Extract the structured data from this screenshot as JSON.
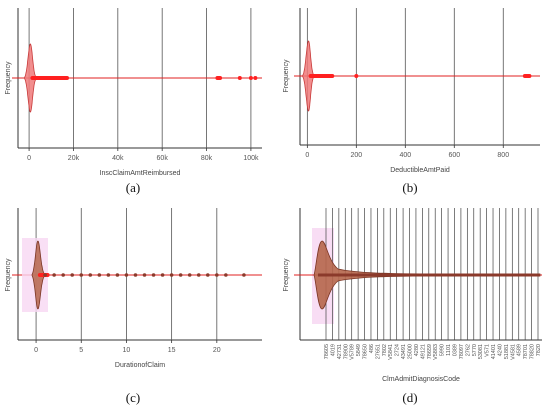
{
  "chart_data": [
    {
      "type": "violin",
      "caption": "(a)",
      "xlabel": "InscClaimAmtReimbursed",
      "ylabel": "Frequency",
      "xlim": [
        -5000,
        105000
      ],
      "xticks": [
        0,
        20000,
        40000,
        60000,
        80000,
        100000
      ],
      "tick_labels": [
        "0",
        "20k",
        "40k",
        "60k",
        "80k",
        "100k"
      ],
      "grid": true,
      "distribution": {
        "peak": 600,
        "core_upper": 3000,
        "dense_upper": 18000,
        "tail_cluster": [
          84000,
          87000
        ],
        "max": 102000,
        "outliers": [
          95000,
          100000,
          102000
        ]
      }
    },
    {
      "type": "violin",
      "caption": "(b)",
      "xlabel": "DeductibleAmtPaid",
      "ylabel": "Frequency",
      "xlim": [
        -30,
        950
      ],
      "xticks": [
        0,
        200,
        400,
        600,
        800
      ],
      "tick_labels": [
        "0",
        "200",
        "400",
        "600",
        "800"
      ],
      "grid": true,
      "distribution": {
        "peak": 5,
        "core_upper": 25,
        "dense_upper": 110,
        "tail_cluster": [
          880,
          915
        ],
        "max": 915,
        "outliers": [
          200
        ]
      }
    },
    {
      "type": "violin",
      "caption": "(c)",
      "xlabel": "DurationofClaim",
      "ylabel": "Frequency",
      "xlim": [
        -2,
        25
      ],
      "xticks": [
        0,
        5,
        10,
        15,
        20
      ],
      "tick_labels": [
        "0",
        "5",
        "10",
        "15",
        "20"
      ],
      "grid": true,
      "distribution": {
        "peak": 0.2,
        "core_upper": 0.9,
        "dense_upper": 1.5,
        "points": [
          1,
          2,
          3,
          4,
          5,
          6,
          7,
          8,
          9,
          10,
          11,
          12,
          13,
          14,
          15,
          16,
          17,
          18,
          19,
          20,
          21,
          23
        ],
        "max": 23
      }
    },
    {
      "type": "violin",
      "caption": "(d)",
      "xlabel": "ClmAdmitDiagnosisCode",
      "ylabel": "Frequency",
      "grid": true,
      "tick_labels": [
        "78605",
        "4019",
        "42731",
        "78900",
        "V5789",
        "5849",
        "78650",
        "486",
        "27651",
        "7802",
        "V5841",
        "2724",
        "43491",
        "25000",
        "4280",
        "49121",
        "78659",
        "V5883",
        "5990",
        "1101",
        "0389",
        "78097",
        "2762",
        "5770",
        "53081",
        "V571",
        "41401",
        "4240",
        "51881",
        "V4581",
        "4589",
        "78701",
        "78820",
        "7820"
      ],
      "distribution": {
        "peak": 0.6,
        "core_upper": 2.5,
        "dense_upper": 8
      }
    }
  ]
}
